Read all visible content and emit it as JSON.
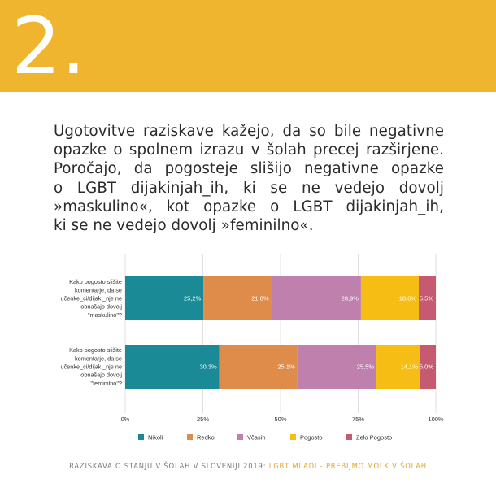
{
  "header": {
    "number": "2",
    "dot": "."
  },
  "intro": {
    "lines": [
      "Ugotovitve raziskave kažejo, da so bile negativne",
      "opazke o spolnem izrazu v šolah precej razširjene.",
      "Poročajo, da pogosteje slišijo negativne opazke",
      "o LGBT dijakinjah_ih, ki se ne vedejo dovolj",
      "»maskulino«, kot opazke o LGBT dijakinjah_ih,",
      "ki se ne vedejo dovolj »feminilno«."
    ]
  },
  "chart_data": {
    "type": "bar",
    "orientation": "horizontal-stacked-100",
    "categories": [
      [
        "Kako pogosto slišite",
        "komentarje, da se",
        "učenke_ci/dijaki_nje ne",
        "obnašajo dovolj",
        "\"maskulino\"?"
      ],
      [
        "Kako pogosto slišite",
        "komentarje, da se",
        "učenke_ci/dijaki_nje ne",
        "obnašajo dovolj",
        "\"feminilno\"?"
      ]
    ],
    "series": [
      {
        "name": "Nikoli",
        "color": "#1a8a97",
        "values": [
          25.2,
          30.3
        ],
        "labels": [
          "25,2%",
          "30,3%"
        ]
      },
      {
        "name": "Redko",
        "color": "#df8b4a",
        "values": [
          21.8,
          25.1
        ],
        "labels": [
          "21,8%",
          "25,1%"
        ]
      },
      {
        "name": "Včasih",
        "color": "#c080ad",
        "values": [
          28.9,
          25.5
        ],
        "labels": [
          "28,9%",
          "25,5%"
        ]
      },
      {
        "name": "Pogosto",
        "color": "#f6be14",
        "values": [
          18.6,
          14.1
        ],
        "labels": [
          "18,6%",
          "14,1%"
        ]
      },
      {
        "name": "Zelo Pogosto",
        "color": "#c55a71",
        "values": [
          5.5,
          5.0
        ],
        "labels": [
          "5,5%",
          "5,0%"
        ]
      }
    ],
    "xlim": [
      0,
      100
    ],
    "xticks": [
      "0%",
      "25%",
      "50%",
      "75%",
      "100%"
    ],
    "grid": true,
    "legend": "bottom"
  },
  "footer": {
    "main": "RAZISKAVA O STANJU V ŠOLAH V SLOVENIJI 2019: ",
    "accent": "LGBT MLADI - PREBIJMO MOLK V ŠOLAH"
  }
}
